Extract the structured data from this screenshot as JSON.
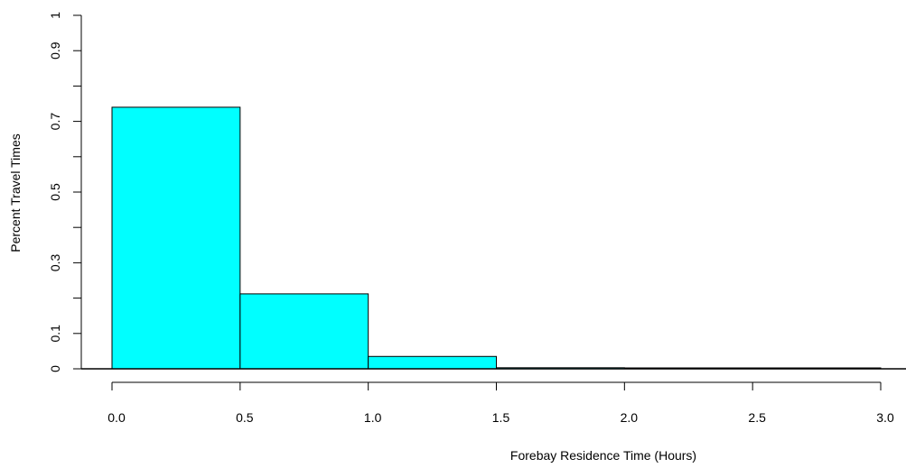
{
  "chart_data": {
    "type": "bar",
    "title": "",
    "xlabel": "Forebay Residence Time (Hours)",
    "ylabel": "Percent Travel Times",
    "xlim": [
      0,
      3.0
    ],
    "ylim": [
      0,
      1
    ],
    "bins": [
      {
        "x0": 0.0,
        "x1": 0.5,
        "value": 0.74
      },
      {
        "x0": 0.5,
        "x1": 1.0,
        "value": 0.212
      },
      {
        "x0": 1.0,
        "x1": 1.5,
        "value": 0.035
      },
      {
        "x0": 1.5,
        "x1": 2.0,
        "value": 0.003
      },
      {
        "x0": 2.0,
        "x1": 2.5,
        "value": 0.002
      },
      {
        "x0": 2.5,
        "x1": 3.0,
        "value": 0.002
      }
    ],
    "x_ticks": [
      "0.0",
      "0.5",
      "1.0",
      "1.5",
      "2.0",
      "2.5",
      "3.0"
    ],
    "y_ticks": [
      0,
      0.1,
      0.2,
      0.3,
      0.4,
      0.5,
      0.6,
      0.7,
      0.8,
      0.9,
      1.0
    ],
    "y_tick_labels": [
      "0",
      "0.1",
      "",
      "0.3",
      "",
      "0.5",
      "",
      "0.7",
      "",
      "0.9",
      "1"
    ],
    "bar_color": "#00ffff",
    "edge_color": "#000000",
    "grid": false
  }
}
